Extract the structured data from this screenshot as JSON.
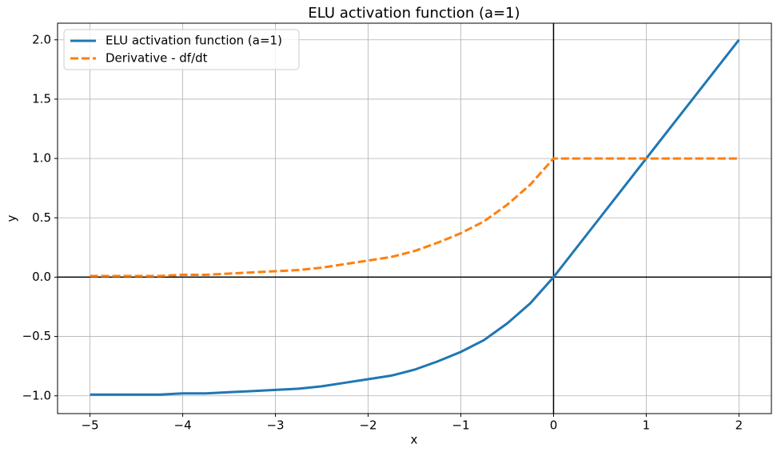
{
  "chart_data": {
    "type": "line",
    "title": "ELU activation function (a=1)",
    "xlabel": "x",
    "ylabel": "y",
    "x": [
      -5,
      -4.75,
      -4.5,
      -4.25,
      -4,
      -3.75,
      -3.5,
      -3.25,
      -3,
      -2.75,
      -2.5,
      -2.25,
      -2,
      -1.75,
      -1.5,
      -1.25,
      -1,
      -0.75,
      -0.5,
      -0.25,
      0,
      0.5,
      1,
      1.5,
      2
    ],
    "series": [
      {
        "name": "ELU activation function (a=1)",
        "color": "#1f77b4",
        "dashed": false,
        "values": [
          -0.99,
          -0.99,
          -0.99,
          -0.99,
          -0.98,
          -0.98,
          -0.97,
          -0.96,
          -0.95,
          -0.94,
          -0.92,
          -0.89,
          -0.86,
          -0.83,
          -0.78,
          -0.71,
          -0.63,
          -0.53,
          -0.39,
          -0.22,
          0,
          0.5,
          1,
          1.5,
          2
        ]
      },
      {
        "name": "Derivative - df/dt",
        "color": "#ff7f0e",
        "dashed": true,
        "values": [
          0.01,
          0.01,
          0.01,
          0.01,
          0.02,
          0.02,
          0.03,
          0.04,
          0.05,
          0.06,
          0.08,
          0.11,
          0.14,
          0.17,
          0.22,
          0.29,
          0.37,
          0.47,
          0.61,
          0.78,
          1,
          1,
          1,
          1,
          1
        ]
      }
    ],
    "xlim": [
      -5.35,
      2.35
    ],
    "ylim": [
      -1.15,
      2.14
    ],
    "xticks": [
      {
        "value": -5,
        "label": "−5"
      },
      {
        "value": -4,
        "label": "−4"
      },
      {
        "value": -3,
        "label": "−3"
      },
      {
        "value": -2,
        "label": "−2"
      },
      {
        "value": -1,
        "label": "−1"
      },
      0,
      1,
      2
    ],
    "yticks": [
      {
        "value": -1,
        "label": "−1.0"
      },
      {
        "value": -0.5,
        "label": "−0.5"
      },
      {
        "value": 0,
        "label": "0.0"
      },
      0.5,
      {
        "value": 1,
        "label": "1.0"
      },
      1.5,
      {
        "value": 2,
        "label": "2.0"
      }
    ],
    "hlines": [
      0
    ],
    "vlines": [
      0
    ],
    "grid": true,
    "legend": "upper-left"
  }
}
